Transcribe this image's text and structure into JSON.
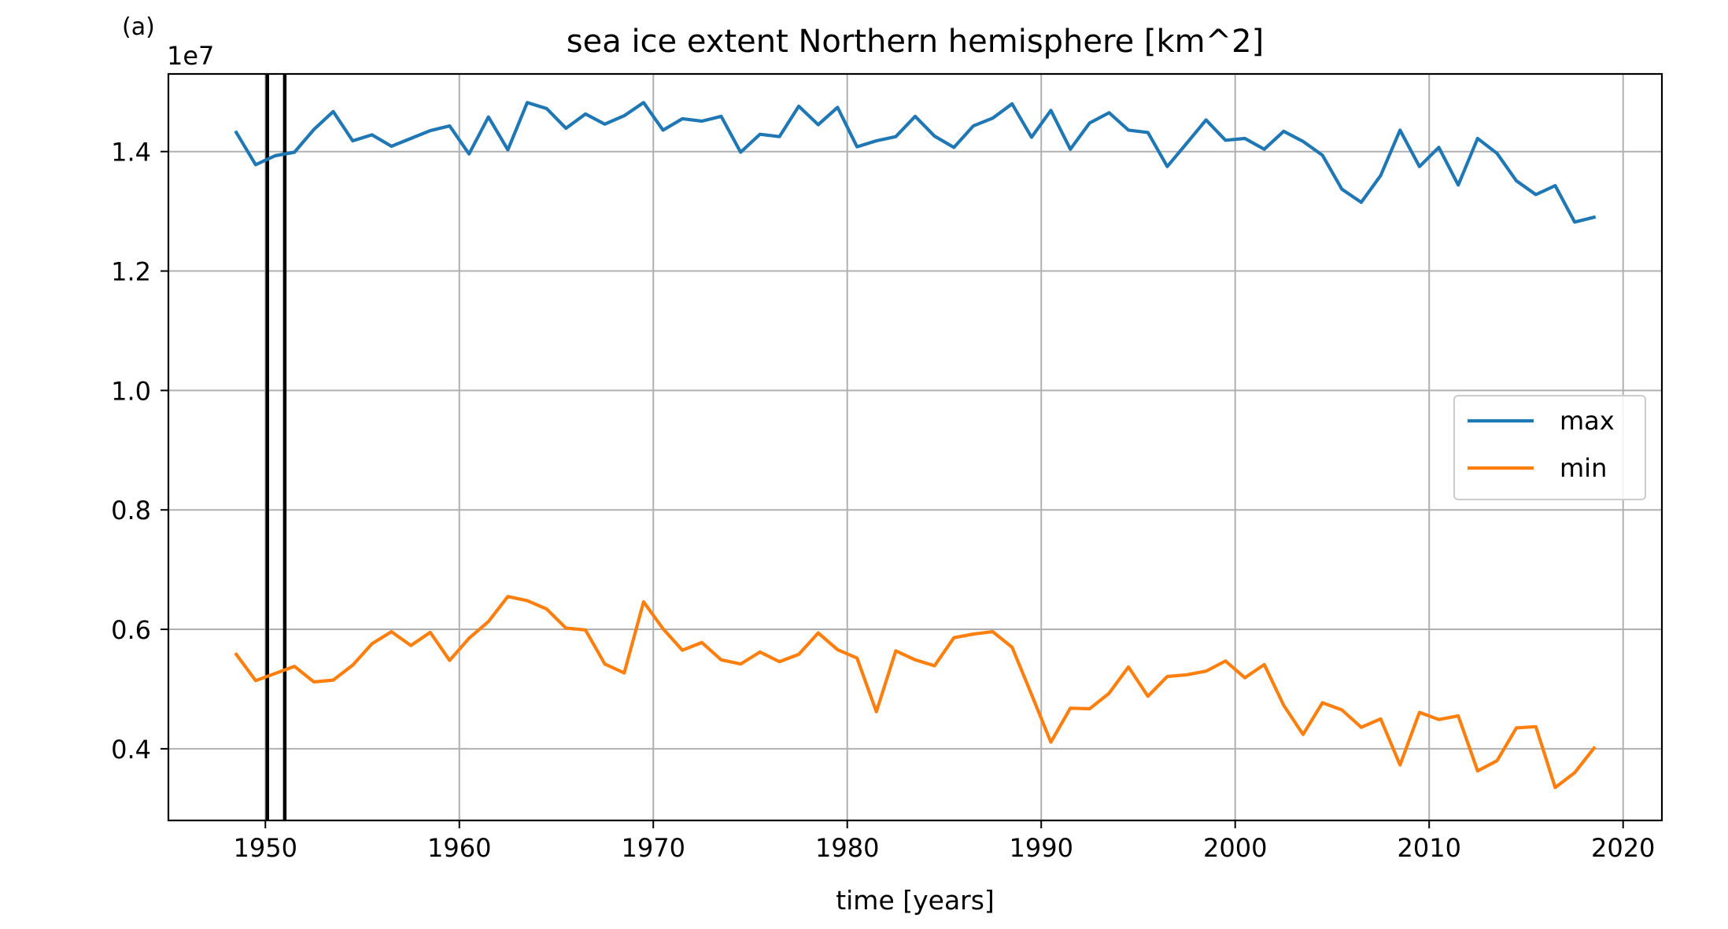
{
  "panel_label": "(a)",
  "chart_data": {
    "type": "line",
    "title": "sea ice extent Northern hemisphere [km^2]",
    "xlabel": "time [years]",
    "ylabel": "",
    "offset_label": "1e7",
    "xlim": [
      1945,
      2022
    ],
    "ylim": [
      2800000,
      15300000
    ],
    "xticks": [
      1950,
      1960,
      1970,
      1980,
      1990,
      2000,
      2010,
      2020
    ],
    "xtick_labels": [
      "1950",
      "1960",
      "1970",
      "1980",
      "1990",
      "2000",
      "2010",
      "2020"
    ],
    "yticks": [
      4000000,
      6000000,
      8000000,
      10000000,
      12000000,
      14000000
    ],
    "ytick_labels": [
      "0.4",
      "0.6",
      "0.8",
      "1.0",
      "1.2",
      "1.4"
    ],
    "grid": true,
    "legend_position": "center-right",
    "vlines": [
      1950.1,
      1951.0
    ],
    "vline_color": "#000000",
    "x": [
      1948.5,
      1949.5,
      1950.5,
      1951.5,
      1952.5,
      1953.5,
      1954.5,
      1955.5,
      1956.5,
      1957.5,
      1958.5,
      1959.5,
      1960.5,
      1961.5,
      1962.5,
      1963.5,
      1964.5,
      1965.5,
      1966.5,
      1967.5,
      1968.5,
      1969.5,
      1970.5,
      1971.5,
      1972.5,
      1973.5,
      1974.5,
      1975.5,
      1976.5,
      1977.5,
      1978.5,
      1979.5,
      1980.5,
      1981.5,
      1982.5,
      1983.5,
      1984.5,
      1985.5,
      1986.5,
      1987.5,
      1988.5,
      1989.5,
      1990.5,
      1991.5,
      1992.5,
      1993.5,
      1994.5,
      1995.5,
      1996.5,
      1997.5,
      1998.5,
      1999.5,
      2000.5,
      2001.5,
      2002.5,
      2003.5,
      2004.5,
      2005.5,
      2006.5,
      2007.5,
      2008.5,
      2009.5,
      2010.5,
      2011.5,
      2012.5,
      2013.5,
      2014.5,
      2015.5,
      2016.5,
      2017.5,
      2018.5
    ],
    "series": [
      {
        "name": "max",
        "color": "#1f77b4",
        "values": [
          14320000,
          13780000,
          13930000,
          13990000,
          14370000,
          14670000,
          14180000,
          14280000,
          14090000,
          14220000,
          14350000,
          14430000,
          13960000,
          14580000,
          14030000,
          14820000,
          14720000,
          14390000,
          14630000,
          14460000,
          14600000,
          14820000,
          14360000,
          14550000,
          14510000,
          14590000,
          13990000,
          14290000,
          14250000,
          14760000,
          14450000,
          14740000,
          14080000,
          14180000,
          14250000,
          14590000,
          14260000,
          14070000,
          14430000,
          14560000,
          14800000,
          14240000,
          14690000,
          14040000,
          14480000,
          14650000,
          14360000,
          14320000,
          13750000,
          14140000,
          14530000,
          14190000,
          14220000,
          14040000,
          14340000,
          14170000,
          13940000,
          13370000,
          13150000,
          13600000,
          14360000,
          13750000,
          14070000,
          13440000,
          14220000,
          13970000,
          13510000,
          13280000,
          13430000,
          12820000,
          12900000
        ]
      },
      {
        "name": "min",
        "color": "#ff7f0e",
        "values": [
          5580000,
          5140000,
          5260000,
          5380000,
          5120000,
          5150000,
          5400000,
          5760000,
          5960000,
          5730000,
          5950000,
          5480000,
          5850000,
          6130000,
          6550000,
          6480000,
          6340000,
          6020000,
          5990000,
          5420000,
          5270000,
          6460000,
          6010000,
          5650000,
          5780000,
          5490000,
          5420000,
          5620000,
          5460000,
          5580000,
          5940000,
          5660000,
          5520000,
          4620000,
          5640000,
          5490000,
          5390000,
          5860000,
          5920000,
          5960000,
          5700000,
          4910000,
          4110000,
          4680000,
          4670000,
          4930000,
          5370000,
          4880000,
          5210000,
          5240000,
          5300000,
          5470000,
          5190000,
          5410000,
          4730000,
          4240000,
          4770000,
          4650000,
          4360000,
          4500000,
          3730000,
          4610000,
          4490000,
          4550000,
          3630000,
          3800000,
          4350000,
          4370000,
          3350000,
          3600000,
          4010000
        ]
      }
    ]
  }
}
